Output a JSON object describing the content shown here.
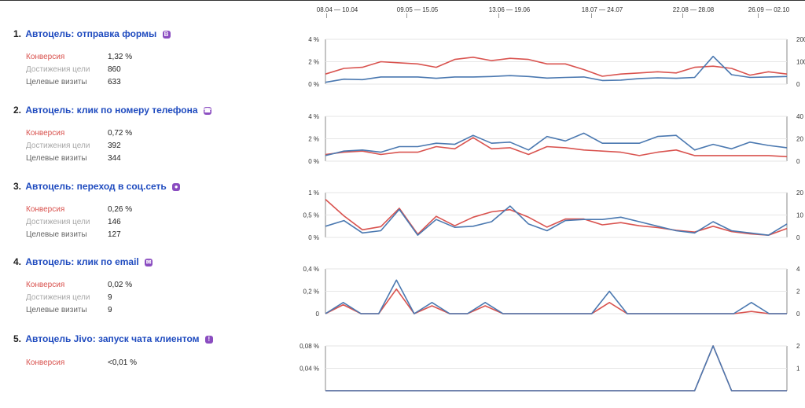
{
  "periods": [
    "08.04 — 10.04",
    "09.05 — 15.05",
    "13.06 — 19.06",
    "18.07 — 24.07",
    "22.08 — 28.08",
    "26.09 — 02.10"
  ],
  "colors": {
    "conversion": "#d9534f",
    "goal_reaches": "#4a78b0",
    "title": "#1f4bbf",
    "badge": "#8a4cc0"
  },
  "goals": [
    {
      "num": "1.",
      "name": "Автоцель: отправка формы",
      "icon": "form-icon",
      "badge": "B",
      "metrics": [
        {
          "label": "Конверсия",
          "value": "1,32 %"
        },
        {
          "label": "Достижения цели",
          "value": "860"
        },
        {
          "label": "Целевые визиты",
          "value": "633"
        }
      ]
    },
    {
      "num": "2.",
      "name": "Автоцель: клик по номеру телефона",
      "icon": "phone-icon",
      "badge": "☎",
      "metrics": [
        {
          "label": "Конверсия",
          "value": "0,72 %"
        },
        {
          "label": "Достижения цели",
          "value": "392"
        },
        {
          "label": "Целевые визиты",
          "value": "344"
        }
      ]
    },
    {
      "num": "3.",
      "name": "Автоцель: переход в соц.сеть",
      "icon": "person-icon",
      "badge": "●",
      "metrics": [
        {
          "label": "Конверсия",
          "value": "0,26 %"
        },
        {
          "label": "Достижения цели",
          "value": "146"
        },
        {
          "label": "Целевые визиты",
          "value": "127"
        }
      ]
    },
    {
      "num": "4.",
      "name": "Автоцель: клик по email",
      "icon": "mail-icon",
      "badge": "✉",
      "metrics": [
        {
          "label": "Конверсия",
          "value": "0,02 %"
        },
        {
          "label": "Достижения цели",
          "value": "9"
        },
        {
          "label": "Целевые визиты",
          "value": "9"
        }
      ]
    },
    {
      "num": "5.",
      "name": "Автоцель Jivo: запуск чата клиентом",
      "icon": "alert-icon",
      "badge": "!",
      "metrics": [
        {
          "label": "Конверсия",
          "value": "<0,01 %"
        }
      ]
    }
  ],
  "chart_data": [
    {
      "type": "line",
      "left_ticks": [
        "4 %",
        "2 %",
        "0 %"
      ],
      "left_range": [
        0,
        4
      ],
      "right_ticks": [
        "200",
        "100",
        "0"
      ],
      "right_range": [
        0,
        200
      ],
      "series": [
        {
          "values": [
            0.9,
            1.4,
            1.5,
            2.0,
            1.9,
            1.8,
            1.5,
            2.2,
            2.4,
            2.1,
            2.3,
            2.2,
            1.8,
            1.8,
            1.3,
            0.7,
            0.9,
            1.0,
            1.1,
            1.0,
            1.5,
            1.6,
            1.4,
            0.8,
            1.1,
            0.9
          ],
          "axis": "left"
        },
        {
          "values": [
            8,
            22,
            20,
            32,
            32,
            32,
            26,
            32,
            32,
            34,
            38,
            34,
            27,
            30,
            32,
            16,
            18,
            25,
            28,
            26,
            30,
            124,
            42,
            30,
            32,
            34
          ],
          "axis": "right"
        }
      ]
    },
    {
      "type": "line",
      "left_ticks": [
        "4 %",
        "2 %",
        "0 %"
      ],
      "left_range": [
        0,
        4
      ],
      "right_ticks": [
        "40",
        "20",
        "0"
      ],
      "right_range": [
        0,
        40
      ],
      "series": [
        {
          "values": [
            0.6,
            0.8,
            0.9,
            0.6,
            0.8,
            0.8,
            1.3,
            1.1,
            2.1,
            1.1,
            1.2,
            0.6,
            1.3,
            1.2,
            1.0,
            0.9,
            0.8,
            0.5,
            0.8,
            1.0,
            0.5,
            0.5,
            0.5,
            0.5,
            0.5,
            0.4
          ],
          "axis": "left"
        },
        {
          "values": [
            5,
            9,
            10,
            8,
            13,
            13,
            16,
            15,
            23,
            16,
            17,
            10,
            22,
            18,
            25,
            16,
            16,
            16,
            22,
            23,
            10,
            15,
            11,
            17,
            14,
            12
          ],
          "axis": "right"
        }
      ]
    },
    {
      "type": "line",
      "left_ticks": [
        "1 %",
        "0,5 %",
        "0 %"
      ],
      "left_range": [
        0,
        1
      ],
      "right_ticks": [
        "20",
        "10",
        "0"
      ],
      "right_range": [
        0,
        20
      ],
      "series": [
        {
          "values": [
            0.85,
            0.48,
            0.17,
            0.24,
            0.65,
            0.07,
            0.47,
            0.26,
            0.45,
            0.57,
            0.62,
            0.45,
            0.23,
            0.41,
            0.41,
            0.28,
            0.33,
            0.26,
            0.22,
            0.16,
            0.12,
            0.25,
            0.13,
            0.08,
            0.05,
            0.2
          ],
          "axis": "left"
        },
        {
          "values": [
            5,
            7.5,
            2,
            3,
            12.5,
            1,
            8,
            4.5,
            5,
            7,
            14,
            6,
            3,
            7.5,
            8,
            8,
            9,
            7,
            5,
            3,
            2,
            7,
            3,
            2,
            1,
            6
          ],
          "axis": "right"
        }
      ]
    },
    {
      "type": "line",
      "left_ticks": [
        "0,4 %",
        "0,2 %",
        "0"
      ],
      "left_range": [
        0,
        0.4
      ],
      "right_ticks": [
        "4",
        "2",
        "0"
      ],
      "right_range": [
        0,
        4
      ],
      "series": [
        {
          "values": [
            0,
            0.08,
            0,
            0,
            0.22,
            0,
            0.07,
            0,
            0,
            0.07,
            0,
            0,
            0,
            0,
            0,
            0,
            0.1,
            0,
            0,
            0,
            0,
            0,
            0,
            0,
            0.02,
            0,
            0
          ],
          "axis": "left"
        },
        {
          "values": [
            0,
            1,
            0,
            0,
            3,
            0,
            1,
            0,
            0,
            1,
            0,
            0,
            0,
            0,
            0,
            0,
            2,
            0,
            0,
            0,
            0,
            0,
            0,
            0,
            1,
            0,
            0
          ],
          "axis": "right"
        }
      ]
    },
    {
      "type": "line",
      "left_ticks": [
        "0,08 %",
        "0,04 %"
      ],
      "left_range": [
        0,
        0.08
      ],
      "right_ticks": [
        "2",
        "1"
      ],
      "right_range": [
        0,
        2
      ],
      "series": [
        {
          "values": [
            0,
            0,
            0,
            0,
            0,
            0,
            0,
            0,
            0,
            0,
            0,
            0,
            0,
            0,
            0,
            0,
            0,
            0,
            0,
            0,
            0,
            0.08,
            0,
            0,
            0,
            0
          ],
          "axis": "left"
        },
        {
          "values": [
            0,
            0,
            0,
            0,
            0,
            0,
            0,
            0,
            0,
            0,
            0,
            0,
            0,
            0,
            0,
            0,
            0,
            0,
            0,
            0,
            0,
            2,
            0,
            0,
            0,
            0
          ],
          "axis": "right"
        }
      ]
    }
  ]
}
